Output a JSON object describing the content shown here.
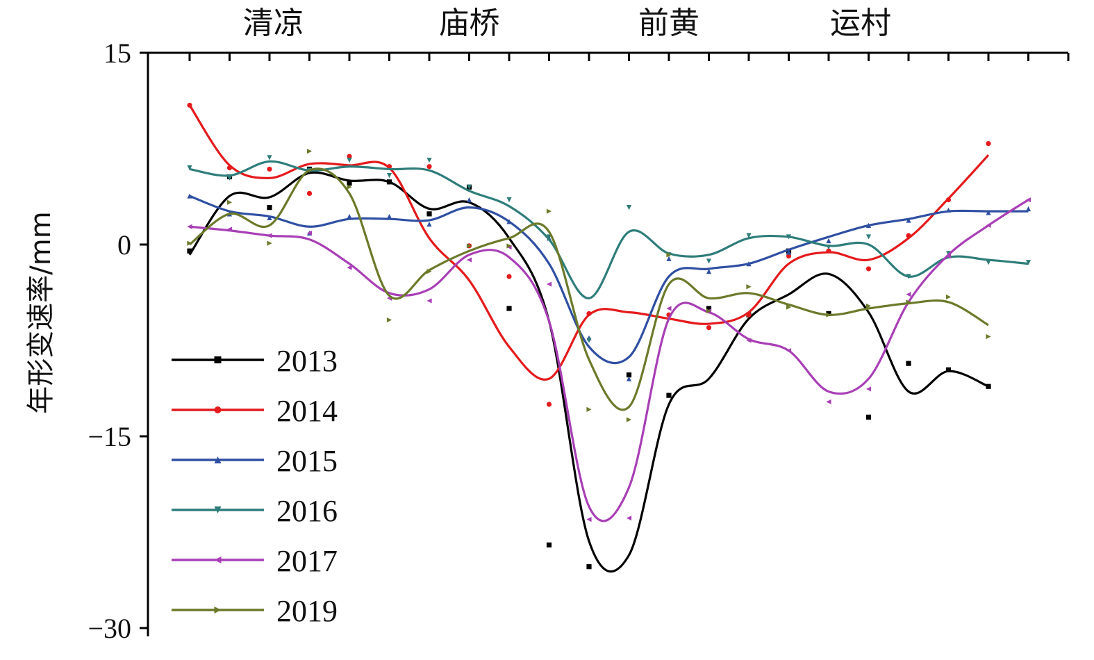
{
  "chart_data": {
    "type": "line",
    "ylabel": "年形变速率/mm",
    "ylim": [
      -30,
      15
    ],
    "yticks": [
      15,
      0,
      -15,
      -30
    ],
    "ytick_labels": [
      "15",
      "0",
      "−15",
      "−30"
    ],
    "x": [
      1,
      2,
      3,
      4,
      5,
      6,
      7,
      8,
      9,
      10,
      11,
      12,
      13,
      14,
      15,
      16,
      17,
      18,
      19,
      20,
      21,
      22,
      23
    ],
    "xlim": [
      0.9,
      23.1
    ],
    "station_labels": [
      {
        "name": "清凉",
        "x": 3.1
      },
      {
        "name": "庙桥",
        "x": 8.0
      },
      {
        "name": "前黄",
        "x": 13.0
      },
      {
        "name": "运村",
        "x": 17.8
      }
    ],
    "series": [
      {
        "name": "2013",
        "color": "#000000",
        "marker": "square",
        "values": [
          -0.5,
          5.3,
          2.9,
          5.9,
          4.8,
          4.9,
          2.4,
          4.5,
          -5.0,
          -23.5,
          -25.2,
          -10.2,
          -11.8,
          -5.0,
          -5.5,
          -0.5,
          -5.4,
          -13.5,
          -9.3,
          -9.8,
          -11.1,
          null,
          null
        ],
        "curve": [
          -0.8,
          3.8,
          3.7,
          5.6,
          5.0,
          4.9,
          2.8,
          3.3,
          0.5,
          -6.0,
          -23.2,
          -24.3,
          -12.5,
          -10.5,
          -5.8,
          -3.9,
          -2.3,
          -5.3,
          -11.5,
          -9.9,
          -11.1,
          null,
          null
        ]
      },
      {
        "name": "2014",
        "color": "#e41a1c",
        "marker": "circle",
        "values": [
          10.9,
          6.0,
          5.9,
          4.0,
          6.9,
          6.1,
          6.1,
          -0.1,
          -2.5,
          -12.5,
          -5.4,
          null,
          -5.5,
          -6.5,
          -5.5,
          -0.9,
          -0.5,
          -1.9,
          0.7,
          3.5,
          7.9,
          null,
          null
        ],
        "curve": [
          10.9,
          6.2,
          5.2,
          6.3,
          6.2,
          6.0,
          0.5,
          -2.8,
          -8.0,
          -10.5,
          -5.5,
          -5.3,
          -5.8,
          -6.2,
          -5.3,
          -1.5,
          -0.6,
          -1.2,
          0.5,
          3.6,
          7.0,
          null,
          null
        ]
      },
      {
        "name": "2015",
        "color": "#2f4fa2",
        "marker": "triangle-up",
        "values": [
          3.8,
          2.4,
          2.1,
          0.9,
          2.2,
          2.2,
          1.6,
          3.5,
          1.8,
          0.5,
          -7.3,
          -10.5,
          -1.1,
          -2.1,
          -1.5,
          -0.6,
          0.3,
          1.5,
          1.9,
          2.7,
          2.5,
          2.8,
          null
        ],
        "curve": [
          3.8,
          2.6,
          2.2,
          1.4,
          2.0,
          2.0,
          1.9,
          2.9,
          1.8,
          -1.5,
          -8.0,
          -8.8,
          -2.5,
          -1.9,
          -1.5,
          -0.4,
          0.6,
          1.5,
          2.0,
          2.6,
          2.6,
          2.6,
          null
        ]
      },
      {
        "name": "2016",
        "color": "#2e7d7a",
        "marker": "triangle-down",
        "values": [
          6.0,
          5.2,
          6.8,
          5.8,
          6.6,
          5.4,
          6.6,
          4.5,
          3.5,
          0.6,
          -7.5,
          2.9,
          -0.8,
          -1.3,
          0.7,
          0.6,
          -0.2,
          0.6,
          -2.5,
          -0.7,
          -1.4,
          -1.4,
          null
        ],
        "curve": [
          5.9,
          5.4,
          6.5,
          5.8,
          6.1,
          5.9,
          5.8,
          4.2,
          3.0,
          0.4,
          -4.2,
          1.0,
          -0.7,
          -0.8,
          0.5,
          0.6,
          -0.1,
          0.0,
          -2.5,
          -1.0,
          -1.2,
          -1.5,
          null
        ]
      },
      {
        "name": "2017",
        "color": "#a83fb5",
        "marker": "triangle-left",
        "values": [
          1.4,
          1.2,
          0.7,
          0.9,
          -1.8,
          -4.2,
          -4.4,
          -1.2,
          -0.2,
          -3.1,
          -21.5,
          -21.4,
          -5.0,
          -5.2,
          -7.5,
          -8.3,
          -12.3,
          -11.3,
          -3.9,
          -0.9,
          1.5,
          3.5,
          null
        ],
        "curve": [
          1.4,
          1.1,
          0.7,
          0.4,
          -1.5,
          -3.8,
          -3.5,
          -0.8,
          -1.0,
          -6.0,
          -20.5,
          -19.0,
          -5.8,
          -5.3,
          -7.4,
          -8.3,
          -11.5,
          -10.5,
          -4.5,
          -0.8,
          1.5,
          3.5,
          null
        ]
      },
      {
        "name": "2019",
        "color": "#6b7a2a",
        "marker": "triangle-right",
        "values": [
          0.1,
          3.3,
          0.1,
          7.3,
          4.5,
          -5.9,
          -2.1,
          -0.1,
          -0.1,
          2.6,
          -12.9,
          -13.7,
          -0.8,
          -5.2,
          -3.3,
          -4.9,
          -5.5,
          -4.8,
          -4.5,
          -4.1,
          -7.2,
          null,
          null
        ],
        "curve": [
          0.0,
          2.4,
          1.5,
          5.8,
          4.0,
          -4.0,
          -2.0,
          -0.5,
          0.5,
          1.0,
          -9.0,
          -12.7,
          -3.1,
          -4.2,
          -3.8,
          -4.7,
          -5.5,
          -5.0,
          -4.6,
          -4.5,
          -6.3,
          null,
          null
        ]
      }
    ]
  }
}
